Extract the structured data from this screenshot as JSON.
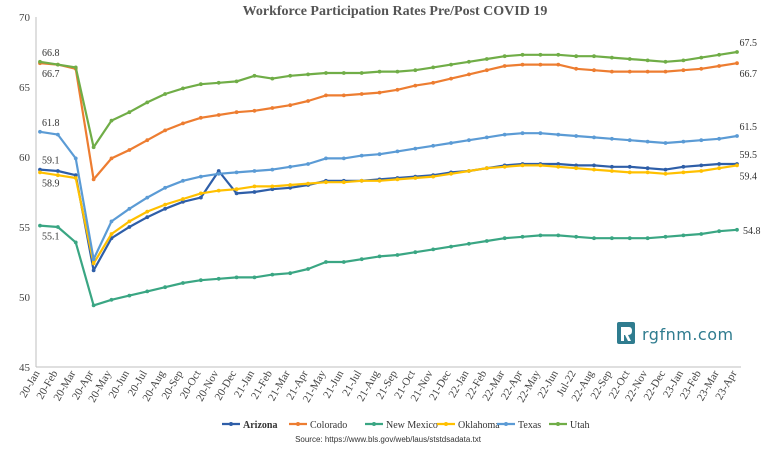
{
  "chart_data": {
    "type": "line",
    "title": "Workforce Participation Rates Pre/Post COVID 19",
    "xlabel": "",
    "ylabel": "",
    "ylim": [
      45,
      70
    ],
    "yticks": [
      45,
      50,
      55,
      60,
      65,
      70
    ],
    "grid": false,
    "legend_position": "bottom",
    "categories": [
      "20-Jan",
      "20-Feb",
      "20-Mar",
      "20-Apr",
      "20-May",
      "20-Jun",
      "20-Jul",
      "20-Aug",
      "20-Sep",
      "20-Oct",
      "20-Nov",
      "20-Dec",
      "21-Jan",
      "21-Feb",
      "21-Mar",
      "21-Apr",
      "21-May",
      "21-Jun",
      "21-Jul",
      "21-Aug",
      "21-Sep",
      "21-Oct",
      "21-Nov",
      "21-Dec",
      "22-Jan",
      "22-Feb",
      "22-Mar",
      "22-Apr",
      "22-May",
      "22-Jun",
      "Jul-22",
      "22-Aug",
      "22-Sep",
      "22-Oct",
      "22-Nov",
      "22-Dec",
      "23-Jan",
      "23-Feb",
      "23-Mar",
      "23-Apr"
    ],
    "series": [
      {
        "name": "Arizona",
        "color": "#2e5ea8",
        "values": [
          59.1,
          59.0,
          58.7,
          51.9,
          54.2,
          55.0,
          55.7,
          56.3,
          56.8,
          57.1,
          59.0,
          57.4,
          57.5,
          57.7,
          57.8,
          58.0,
          58.3,
          58.3,
          58.3,
          58.4,
          58.5,
          58.6,
          58.7,
          58.9,
          59.0,
          59.2,
          59.4,
          59.5,
          59.5,
          59.5,
          59.4,
          59.4,
          59.3,
          59.3,
          59.2,
          59.1,
          59.3,
          59.4,
          59.5,
          59.5
        ]
      },
      {
        "name": "Colorado",
        "color": "#ed7d31",
        "values": [
          66.7,
          66.6,
          66.3,
          58.4,
          59.9,
          60.5,
          61.2,
          61.9,
          62.4,
          62.8,
          63.0,
          63.2,
          63.3,
          63.5,
          63.7,
          64.0,
          64.4,
          64.4,
          64.5,
          64.6,
          64.8,
          65.1,
          65.3,
          65.6,
          65.9,
          66.2,
          66.5,
          66.6,
          66.6,
          66.6,
          66.3,
          66.2,
          66.1,
          66.1,
          66.1,
          66.1,
          66.2,
          66.3,
          66.5,
          66.7
        ]
      },
      {
        "name": "New Mexico",
        "color": "#3aa683",
        "values": [
          55.1,
          55.0,
          53.9,
          49.4,
          49.8,
          50.1,
          50.4,
          50.7,
          51.0,
          51.2,
          51.3,
          51.4,
          51.4,
          51.6,
          51.7,
          52.0,
          52.5,
          52.5,
          52.7,
          52.9,
          53.0,
          53.2,
          53.4,
          53.6,
          53.8,
          54.0,
          54.2,
          54.3,
          54.4,
          54.4,
          54.3,
          54.2,
          54.2,
          54.2,
          54.2,
          54.3,
          54.4,
          54.5,
          54.7,
          54.8
        ]
      },
      {
        "name": "Oklahoma",
        "color": "#ffc000",
        "values": [
          58.9,
          58.7,
          58.5,
          52.4,
          54.5,
          55.4,
          56.1,
          56.6,
          57.0,
          57.4,
          57.6,
          57.7,
          57.9,
          57.9,
          58.0,
          58.1,
          58.2,
          58.2,
          58.3,
          58.3,
          58.4,
          58.5,
          58.6,
          58.8,
          59.0,
          59.2,
          59.3,
          59.4,
          59.4,
          59.3,
          59.2,
          59.1,
          59.0,
          58.9,
          58.9,
          58.8,
          58.9,
          59.0,
          59.2,
          59.4
        ]
      },
      {
        "name": "Texas",
        "color": "#5b9bd5",
        "values": [
          61.8,
          61.6,
          59.9,
          52.7,
          55.4,
          56.3,
          57.1,
          57.8,
          58.3,
          58.6,
          58.8,
          58.9,
          59.0,
          59.1,
          59.3,
          59.5,
          59.9,
          59.9,
          60.1,
          60.2,
          60.4,
          60.6,
          60.8,
          61.0,
          61.2,
          61.4,
          61.6,
          61.7,
          61.7,
          61.6,
          61.5,
          61.4,
          61.3,
          61.2,
          61.1,
          61.0,
          61.1,
          61.2,
          61.3,
          61.5
        ]
      },
      {
        "name": "Utah",
        "color": "#70ad47",
        "values": [
          66.8,
          66.6,
          66.4,
          60.7,
          62.6,
          63.2,
          63.9,
          64.5,
          64.9,
          65.2,
          65.3,
          65.4,
          65.8,
          65.6,
          65.8,
          65.9,
          66.0,
          66.0,
          66.0,
          66.1,
          66.1,
          66.2,
          66.4,
          66.6,
          66.8,
          67.0,
          67.2,
          67.3,
          67.3,
          67.3,
          67.2,
          67.2,
          67.1,
          67.0,
          66.9,
          66.8,
          66.9,
          67.1,
          67.3,
          67.5
        ]
      }
    ],
    "annotations": [
      {
        "text": "66.8",
        "series": "Utah",
        "index": 0,
        "place": "above"
      },
      {
        "text": "66.7",
        "series": "Colorado",
        "index": 0,
        "place": "below"
      },
      {
        "text": "61.8",
        "series": "Texas",
        "index": 0,
        "place": "above"
      },
      {
        "text": "59.1",
        "series": "Arizona",
        "index": 0,
        "place": "above"
      },
      {
        "text": "58.9",
        "series": "Oklahoma",
        "index": 0,
        "place": "below"
      },
      {
        "text": "55.1",
        "series": "New Mexico",
        "index": 0,
        "place": "below"
      },
      {
        "text": "67.5",
        "series": "Utah",
        "index": 39,
        "place": "above"
      },
      {
        "text": "66.7",
        "series": "Colorado",
        "index": 39,
        "place": "below"
      },
      {
        "text": "61.5",
        "series": "Texas",
        "index": 39,
        "place": "above"
      },
      {
        "text": "59.5",
        "series": "Arizona",
        "index": 39,
        "place": "above"
      },
      {
        "text": "59.4",
        "series": "Oklahoma",
        "index": 39,
        "place": "below"
      },
      {
        "text": "54.8",
        "series": "New Mexico",
        "index": 39,
        "place": "right"
      }
    ]
  },
  "source_text": "Source: https://www.bls.gov/web/laus/ststdsadata.txt",
  "logo_text": "rgfnm.com"
}
